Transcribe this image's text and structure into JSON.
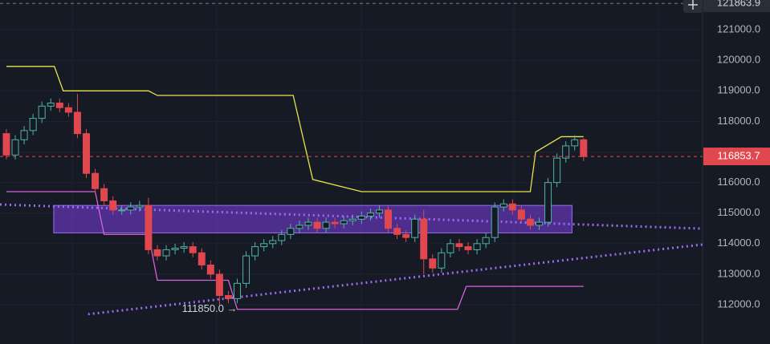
{
  "chart_data": {
    "type": "candlestick",
    "ylim": [
      110714,
      121974
    ],
    "xlim": [
      -0.72,
      78.4
    ],
    "yticks": [
      {
        "value": 112000,
        "label": "112000.0"
      },
      {
        "value": 113000,
        "label": "113000.0"
      },
      {
        "value": 114000,
        "label": "114000.0"
      },
      {
        "value": 115000,
        "label": "115000.0"
      },
      {
        "value": 116000,
        "label": "116000.0"
      },
      {
        "value": 117000,
        "label": "117000.0"
      },
      {
        "value": 118000,
        "label": "118000.0"
      },
      {
        "value": 119000,
        "label": "119000.0"
      },
      {
        "value": 120000,
        "label": "120000.0"
      },
      {
        "value": 121000,
        "label": "121000.0"
      }
    ],
    "grid": true,
    "up_color": "#4fb3a3",
    "down_color": "#e0474f",
    "open": [
      117600,
      116900,
      117400,
      117700,
      118100,
      118500,
      118600,
      118450,
      118300,
      117600,
      116300,
      115800,
      115400,
      115100,
      115100,
      115200,
      115250,
      113800,
      113600,
      113800,
      113850,
      113900,
      113700,
      113300,
      113000,
      112300,
      112200,
      112700,
      113600,
      113900,
      114000,
      114100,
      114300,
      114500,
      114600,
      114700,
      114500,
      114700,
      114650,
      114750,
      114800,
      114900,
      115000,
      115100,
      114500,
      114300,
      114200,
      114800,
      113500,
      113200,
      113700,
      114000,
      113900,
      113800,
      114000,
      114200,
      115200,
      115300,
      115100,
      114800,
      114600,
      114700,
      116000,
      116800,
      117200,
      117400
    ],
    "high": [
      117750,
      117550,
      117850,
      118250,
      118650,
      118750,
      118750,
      118600,
      118900,
      117750,
      116450,
      115950,
      115550,
      115250,
      115350,
      115400,
      115500,
      113950,
      113950,
      114000,
      114050,
      114050,
      113850,
      113450,
      113150,
      112450,
      112850,
      113750,
      114050,
      114150,
      114250,
      114450,
      114650,
      114750,
      114850,
      114850,
      114850,
      114850,
      114900,
      114950,
      115050,
      115150,
      115250,
      115250,
      114650,
      114450,
      114950,
      115100,
      113650,
      113850,
      114150,
      114150,
      114050,
      114150,
      114350,
      115350,
      115450,
      115450,
      115250,
      114950,
      114850,
      116150,
      116950,
      117350,
      117550,
      117450
    ],
    "low": [
      116750,
      116750,
      117250,
      117550,
      117950,
      118350,
      118300,
      118150,
      117450,
      116150,
      115650,
      115250,
      114950,
      114950,
      114950,
      115050,
      113650,
      113450,
      113450,
      113650,
      113700,
      113550,
      113150,
      112850,
      112000,
      112050,
      112050,
      112550,
      113450,
      113750,
      113850,
      113950,
      114150,
      114350,
      114450,
      114350,
      114350,
      114500,
      114500,
      114600,
      114650,
      114750,
      114850,
      114350,
      114150,
      114050,
      114050,
      113000,
      113050,
      113050,
      113550,
      113750,
      113650,
      113650,
      113850,
      114050,
      115050,
      114950,
      114650,
      114450,
      114450,
      114550,
      115850,
      116650,
      117050,
      116700
    ],
    "close": [
      116900,
      117400,
      117700,
      118100,
      118500,
      118600,
      118450,
      118300,
      117600,
      116300,
      115800,
      115400,
      115100,
      115100,
      115200,
      115250,
      113800,
      113600,
      113800,
      113850,
      113900,
      113700,
      113300,
      113000,
      112300,
      112200,
      112700,
      113600,
      113900,
      114000,
      114100,
      114300,
      114500,
      114600,
      114700,
      114500,
      114700,
      114650,
      114750,
      114800,
      114900,
      115000,
      115100,
      114500,
      114300,
      114200,
      114800,
      113500,
      113200,
      113700,
      114000,
      113900,
      113800,
      114000,
      114200,
      115200,
      115300,
      115100,
      114800,
      114600,
      114700,
      116000,
      116800,
      117200,
      117400,
      116850
    ],
    "lines": [
      {
        "color": "#e8e34a",
        "x": [
          0,
          5.4,
          6.4,
          16,
          17,
          32.3,
          34.5,
          40,
          59,
          59.6,
          62.5,
          65
        ],
        "values": [
          119800,
          119800,
          119000,
          119000,
          118850,
          118850,
          116100,
          115700,
          115700,
          117000,
          117500,
          117500
        ]
      },
      {
        "color": "#d563d6",
        "x": [
          0,
          10,
          11,
          16,
          17,
          25,
          26,
          50.8,
          51.8,
          65
        ],
        "values": [
          115700,
          115700,
          114300,
          114300,
          112800,
          112800,
          111850,
          111850,
          112600,
          112600
        ]
      }
    ],
    "trendlines": [
      {
        "color": "#9b6cf0",
        "x": [
          -0.72,
          78.4
        ],
        "values": [
          115280,
          114490
        ]
      },
      {
        "color": "#9b6cf0",
        "x": [
          9.2,
          78.4
        ],
        "values": [
          111690,
          113970
        ]
      }
    ],
    "zone": {
      "color": "#7b3fe4",
      "x": [
        5.33,
        63.7
      ],
      "values": [
        114350,
        115250
      ]
    },
    "price_line": {
      "value": 116853.7,
      "label": "116853.7",
      "color": "#e0474f"
    },
    "crosshair": {
      "value": 121863.9,
      "label": "121863.9"
    },
    "annotation": {
      "text": "111850.0 →",
      "x": 26,
      "value": 111850
    }
  }
}
